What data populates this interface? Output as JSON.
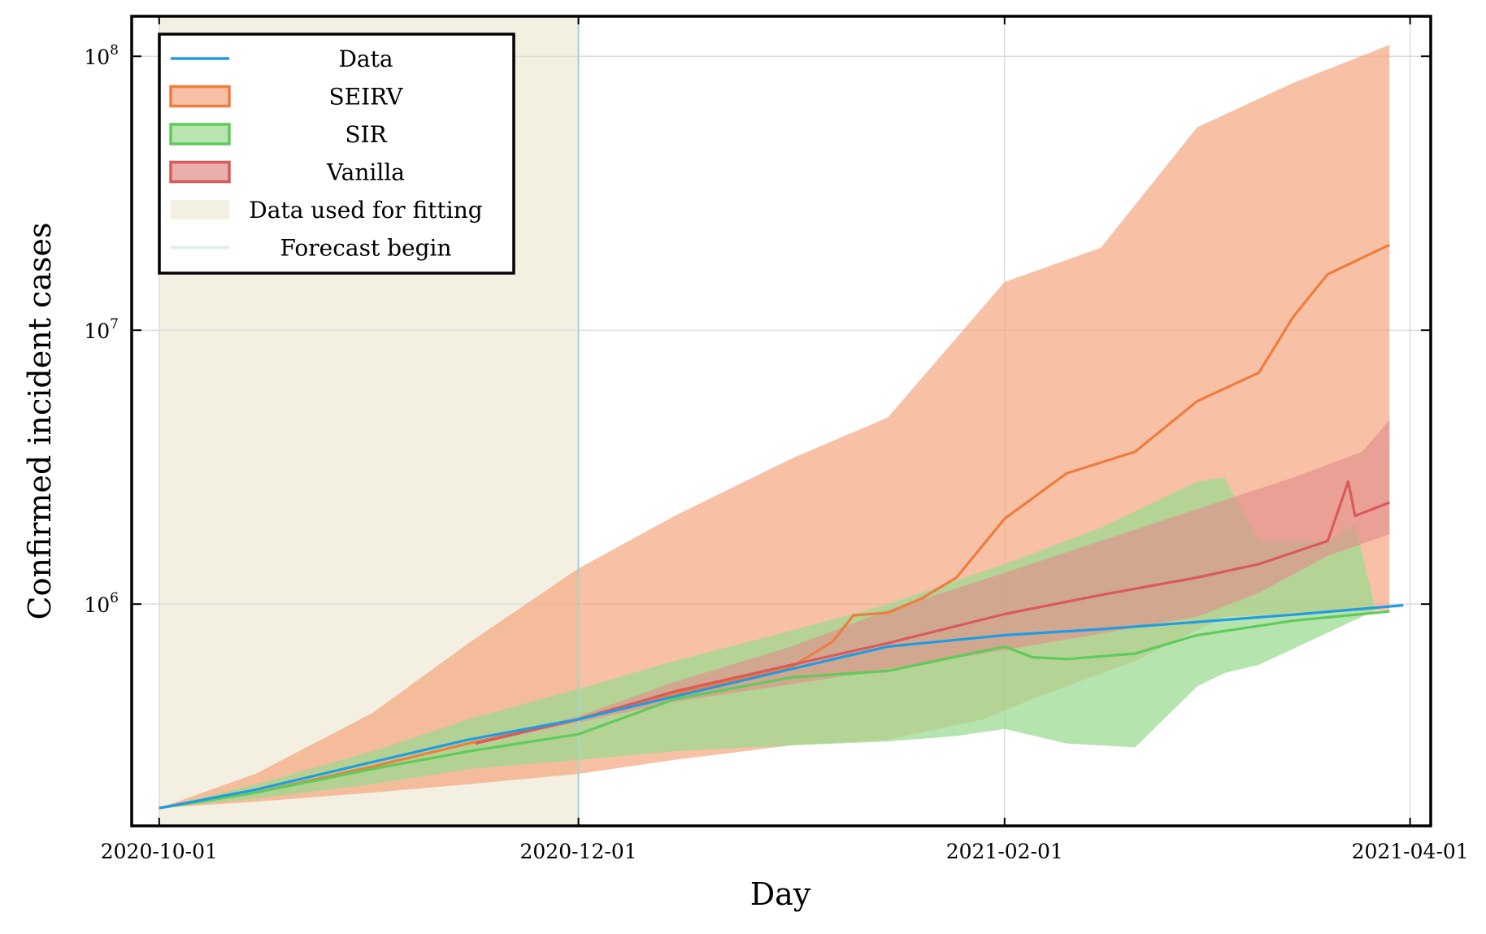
{
  "chart_data": {
    "type": "line",
    "xlabel": "Day",
    "ylabel": "Confirmed incident cases",
    "x_axis": {
      "type": "date",
      "range": [
        "2020-09-27",
        "2021-04-04"
      ],
      "ticks": [
        "2020-10-01",
        "2020-12-01",
        "2021-02-01",
        "2021-04-01"
      ]
    },
    "y_axis": {
      "scale": "log",
      "range": [
        155000,
        140000000
      ],
      "ticks": [
        {
          "value": 1000000,
          "base": "10",
          "exp": "6"
        },
        {
          "value": 10000000,
          "base": "10",
          "exp": "7"
        },
        {
          "value": 100000000,
          "base": "10",
          "exp": "8"
        }
      ]
    },
    "grid": true,
    "legend_position": "top-left",
    "fit_region": {
      "label": "Data used for fitting",
      "start": "2020-10-01",
      "end": "2020-12-01",
      "color": "#f4f0e1"
    },
    "forecast_begin": {
      "label": "Forecast begin",
      "date": "2020-12-01",
      "color": "#a6d4cd"
    },
    "series": [
      {
        "name": "Data",
        "kind": "line",
        "color": "#1f9ce3",
        "points": [
          [
            "2020-10-01",
            180000
          ],
          [
            "2020-10-15",
            210000
          ],
          [
            "2020-11-01",
            265000
          ],
          [
            "2020-11-15",
            320000
          ],
          [
            "2020-12-01",
            380000
          ],
          [
            "2020-12-15",
            460000
          ],
          [
            "2021-01-01",
            580000
          ],
          [
            "2021-01-15",
            700000
          ],
          [
            "2021-02-01",
            770000
          ],
          [
            "2021-02-15",
            810000
          ],
          [
            "2021-03-01",
            860000
          ],
          [
            "2021-03-15",
            915000
          ],
          [
            "2021-03-31",
            990000
          ]
        ]
      },
      {
        "name": "SEIRV",
        "kind": "band",
        "color": "#ee7d3f",
        "fill": "#f4a47c",
        "median": [
          [
            "2020-10-01",
            180000
          ],
          [
            "2020-10-15",
            205000
          ],
          [
            "2020-11-01",
            255000
          ],
          [
            "2020-11-15",
            310000
          ],
          [
            "2020-12-01",
            380000
          ],
          [
            "2020-12-15",
            470000
          ],
          [
            "2021-01-01",
            590000
          ],
          [
            "2021-01-07",
            730000
          ],
          [
            "2021-01-10",
            910000
          ],
          [
            "2021-01-15",
            930000
          ],
          [
            "2021-01-20",
            1050000
          ],
          [
            "2021-01-25",
            1250000
          ],
          [
            "2021-02-01",
            2050000
          ],
          [
            "2021-02-10",
            3000000
          ],
          [
            "2021-02-20",
            3600000
          ],
          [
            "2021-03-01",
            5500000
          ],
          [
            "2021-03-10",
            7000000
          ],
          [
            "2021-03-15",
            11200000
          ],
          [
            "2021-03-20",
            16000000
          ],
          [
            "2021-03-29",
            20500000
          ]
        ],
        "upper": [
          [
            "2020-10-01",
            180000
          ],
          [
            "2020-10-15",
            240000
          ],
          [
            "2020-11-01",
            400000
          ],
          [
            "2020-11-15",
            720000
          ],
          [
            "2020-12-01",
            1350000
          ],
          [
            "2020-12-15",
            2100000
          ],
          [
            "2021-01-01",
            3400000
          ],
          [
            "2021-01-15",
            4800000
          ],
          [
            "2021-02-01",
            15000000
          ],
          [
            "2021-02-15",
            20000000
          ],
          [
            "2021-03-01",
            55000000
          ],
          [
            "2021-03-15",
            80000000
          ],
          [
            "2021-03-29",
            110000000
          ]
        ],
        "lower": [
          [
            "2020-10-01",
            180000
          ],
          [
            "2020-10-15",
            190000
          ],
          [
            "2020-11-01",
            205000
          ],
          [
            "2020-11-15",
            220000
          ],
          [
            "2020-12-01",
            240000
          ],
          [
            "2020-12-15",
            270000
          ],
          [
            "2021-01-01",
            305000
          ],
          [
            "2021-01-15",
            320000
          ],
          [
            "2021-01-29",
            380000
          ],
          [
            "2021-02-05",
            450000
          ],
          [
            "2021-02-20",
            620000
          ],
          [
            "2021-03-05",
            900000
          ],
          [
            "2021-03-29",
            950000
          ]
        ]
      },
      {
        "name": "SIR",
        "kind": "band",
        "color": "#5fcb5a",
        "fill": "#9ad98f",
        "median": [
          [
            "2020-10-01",
            180000
          ],
          [
            "2020-10-15",
            205000
          ],
          [
            "2020-11-01",
            250000
          ],
          [
            "2020-11-15",
            290000
          ],
          [
            "2020-12-01",
            335000
          ],
          [
            "2020-12-15",
            450000
          ],
          [
            "2021-01-01",
            540000
          ],
          [
            "2021-01-15",
            570000
          ],
          [
            "2021-02-01",
            700000
          ],
          [
            "2021-02-05",
            640000
          ],
          [
            "2021-02-10",
            630000
          ],
          [
            "2021-02-20",
            660000
          ],
          [
            "2021-03-01",
            770000
          ],
          [
            "2021-03-15",
            870000
          ],
          [
            "2021-03-29",
            940000
          ]
        ],
        "upper": [
          [
            "2020-10-01",
            180000
          ],
          [
            "2020-10-15",
            220000
          ],
          [
            "2020-11-01",
            290000
          ],
          [
            "2020-11-15",
            380000
          ],
          [
            "2020-12-01",
            490000
          ],
          [
            "2020-12-15",
            620000
          ],
          [
            "2021-01-01",
            800000
          ],
          [
            "2021-01-15",
            1000000
          ],
          [
            "2021-02-01",
            1400000
          ],
          [
            "2021-02-15",
            1900000
          ],
          [
            "2021-03-01",
            2800000
          ],
          [
            "2021-03-05",
            2900000
          ],
          [
            "2021-03-10",
            1700000
          ],
          [
            "2021-03-20",
            1700000
          ],
          [
            "2021-03-24",
            1950000
          ],
          [
            "2021-03-27",
            950000
          ]
        ],
        "lower": [
          [
            "2020-10-01",
            180000
          ],
          [
            "2020-10-15",
            195000
          ],
          [
            "2020-11-01",
            220000
          ],
          [
            "2020-11-15",
            250000
          ],
          [
            "2020-12-01",
            270000
          ],
          [
            "2020-12-15",
            290000
          ],
          [
            "2021-01-01",
            305000
          ],
          [
            "2021-01-15",
            315000
          ],
          [
            "2021-01-25",
            330000
          ],
          [
            "2021-02-01",
            350000
          ],
          [
            "2021-02-10",
            310000
          ],
          [
            "2021-02-20",
            300000
          ],
          [
            "2021-03-01",
            500000
          ],
          [
            "2021-03-05",
            560000
          ],
          [
            "2021-03-10",
            600000
          ],
          [
            "2021-03-27",
            950000
          ]
        ]
      },
      {
        "name": "Vanilla",
        "kind": "band",
        "color": "#d95a5a",
        "fill": "#e38c8c",
        "median": [
          [
            "2020-11-16",
            310000
          ],
          [
            "2020-12-01",
            380000
          ],
          [
            "2020-12-15",
            480000
          ],
          [
            "2021-01-01",
            600000
          ],
          [
            "2021-01-15",
            720000
          ],
          [
            "2021-02-01",
            920000
          ],
          [
            "2021-02-15",
            1080000
          ],
          [
            "2021-03-01",
            1250000
          ],
          [
            "2021-03-10",
            1400000
          ],
          [
            "2021-03-20",
            1700000
          ],
          [
            "2021-03-23",
            2800000
          ],
          [
            "2021-03-24",
            2100000
          ],
          [
            "2021-03-29",
            2350000
          ]
        ],
        "upper": [
          [
            "2020-11-16",
            310000
          ],
          [
            "2020-12-01",
            390000
          ],
          [
            "2020-12-15",
            520000
          ],
          [
            "2021-01-01",
            700000
          ],
          [
            "2021-01-15",
            950000
          ],
          [
            "2021-02-01",
            1300000
          ],
          [
            "2021-02-15",
            1700000
          ],
          [
            "2021-03-05",
            2400000
          ],
          [
            "2021-03-15",
            2900000
          ],
          [
            "2021-03-25",
            3600000
          ],
          [
            "2021-03-29",
            4700000
          ]
        ],
        "lower": [
          [
            "2020-11-16",
            310000
          ],
          [
            "2020-12-01",
            370000
          ],
          [
            "2020-12-15",
            440000
          ],
          [
            "2021-01-01",
            510000
          ],
          [
            "2021-01-15",
            580000
          ],
          [
            "2021-02-01",
            680000
          ],
          [
            "2021-02-15",
            780000
          ],
          [
            "2021-03-01",
            900000
          ],
          [
            "2021-03-10",
            1100000
          ],
          [
            "2021-03-20",
            1500000
          ],
          [
            "2021-03-29",
            1800000
          ]
        ]
      }
    ]
  }
}
